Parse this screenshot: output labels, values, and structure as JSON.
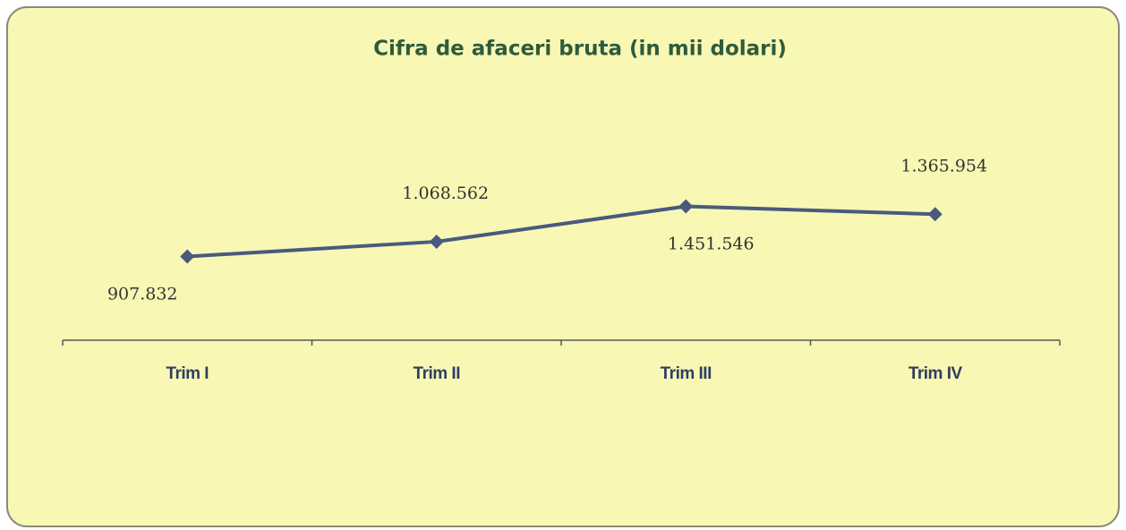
{
  "chart_data": {
    "type": "line",
    "title": "Cifra de afaceri bruta (in mii dolari)",
    "categories": [
      "Trim I",
      "Trim II",
      "Trim III",
      "Trim IV"
    ],
    "series": [
      {
        "color": "#4a5a7e",
        "values": [
          907832,
          1068562,
          1451546,
          1365954
        ],
        "value_labels": [
          "907.832",
          "1.068.562",
          "1.451.546",
          "1.365.954"
        ]
      }
    ],
    "ylim": [
      0,
      3000000
    ]
  }
}
